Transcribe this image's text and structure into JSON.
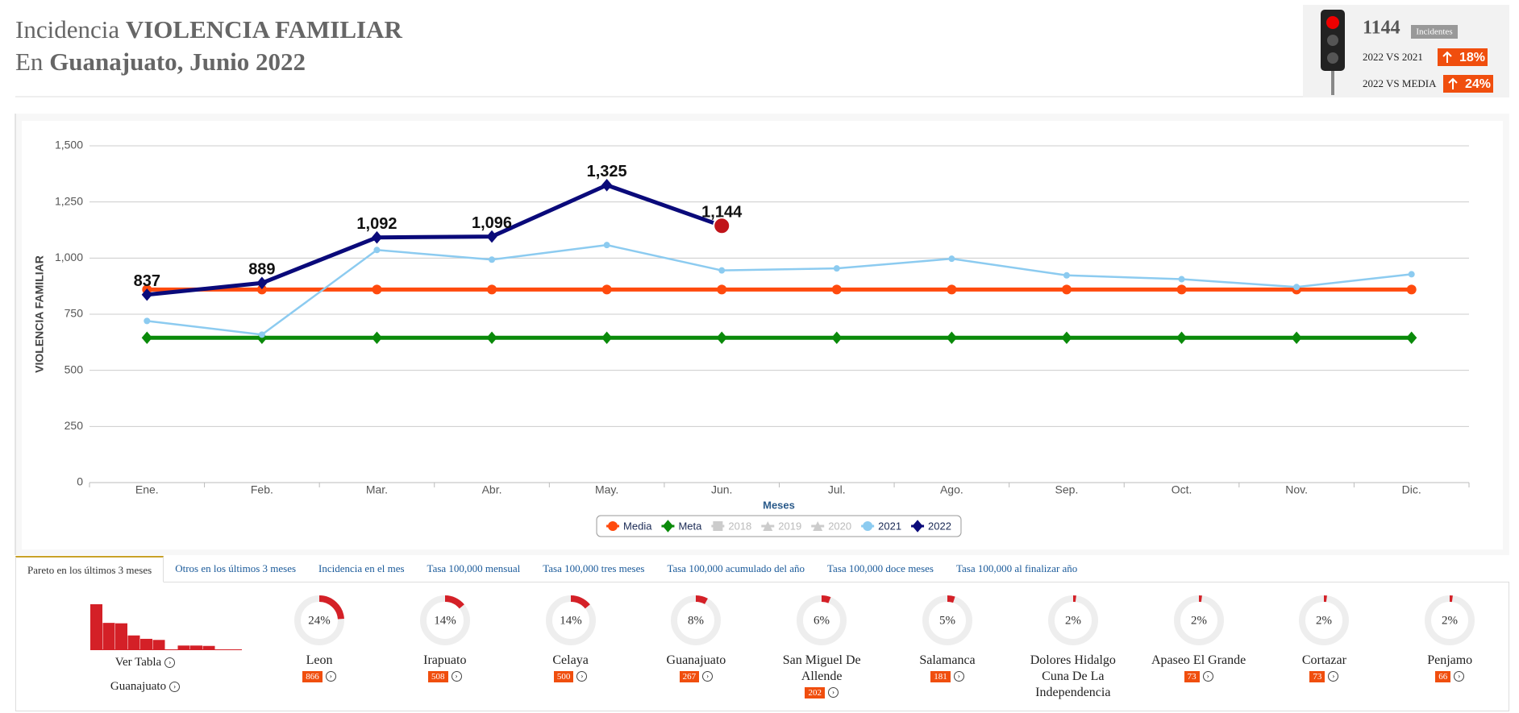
{
  "header": {
    "title_prefix": "Incidencia",
    "title_main": "VIOLENCIA FAMILIAR",
    "subtitle_prefix": "En",
    "subtitle_main": "Guanajuato, Junio 2022"
  },
  "indicator": {
    "total": "1144",
    "total_label": "Incidentes",
    "compare1_label": "2022 VS 2021",
    "compare1_value": "18%",
    "compare2_label": "2022 VS MEDIA",
    "compare2_value": "24%"
  },
  "chart_data": {
    "type": "line",
    "ylabel": "VIOLENCIA FAMILIAR",
    "xlabel": "Meses",
    "categories": [
      "Ene.",
      "Feb.",
      "Mar.",
      "Abr.",
      "May.",
      "Jun.",
      "Jul.",
      "Ago.",
      "Sep.",
      "Oct.",
      "Nov.",
      "Dic."
    ],
    "ylim": [
      0,
      1500
    ],
    "yticks": [
      0,
      250,
      500,
      750,
      {
        "value": 1000,
        "label": "1,000"
      },
      {
        "value": 1250,
        "label": "1,250"
      },
      {
        "value": 1500,
        "label": "1,500"
      }
    ],
    "grid": true,
    "series": [
      {
        "name": "Media",
        "color": "#ff4a0d",
        "marker": "circle",
        "values": [
          860,
          860,
          860,
          860,
          860,
          860,
          860,
          860,
          860,
          860,
          860,
          860
        ]
      },
      {
        "name": "Meta",
        "color": "#0a8a0a",
        "marker": "diamond",
        "values": [
          645,
          645,
          645,
          645,
          645,
          645,
          645,
          645,
          645,
          645,
          645,
          645
        ]
      },
      {
        "name": "2018",
        "color": "#cccccc",
        "marker": "square",
        "hidden": true,
        "values": [
          null,
          null,
          null,
          null,
          null,
          null,
          null,
          null,
          null,
          null,
          null,
          null
        ]
      },
      {
        "name": "2019",
        "color": "#cccccc",
        "marker": "triangle",
        "hidden": true,
        "values": [
          null,
          null,
          null,
          null,
          null,
          null,
          null,
          null,
          null,
          null,
          null,
          null
        ]
      },
      {
        "name": "2020",
        "color": "#cccccc",
        "marker": "triangle",
        "hidden": true,
        "values": [
          null,
          null,
          null,
          null,
          null,
          null,
          null,
          null,
          null,
          null,
          null,
          null
        ]
      },
      {
        "name": "2021",
        "color": "#8ccbf0",
        "marker": "circle",
        "values": [
          720,
          659,
          1036,
          993,
          1058,
          945,
          954,
          997,
          923,
          906,
          871,
          928
        ]
      },
      {
        "name": "2022",
        "color": "#0a0a7a",
        "marker": "diamond",
        "values": [
          837,
          889,
          1092,
          1096,
          1325,
          1144,
          null,
          null,
          null,
          null,
          null,
          null
        ],
        "value_labels": [
          "837",
          "889",
          "1,092",
          "1,096",
          "1,325",
          "1,144",
          null,
          null,
          null,
          null,
          null,
          null
        ]
      }
    ]
  },
  "tabs": [
    "Pareto en los últimos 3 meses",
    "Otros en los últimos 3 meses",
    "Incidencia en el mes",
    "Tasa 100,000 mensual",
    "Tasa 100,000 tres meses",
    "Tasa 100,000 acumulado del año",
    "Tasa 100,000 doce meses",
    "Tasa 100,000 al finalizar año"
  ],
  "pareto": {
    "links": [
      "Ver Tabla",
      "Guanajuato"
    ],
    "items": [
      {
        "name": "Leon",
        "pct": {
          "value": 24,
          "label": "24%"
        },
        "count": "866"
      },
      {
        "name": "Irapuato",
        "pct": {
          "value": 14,
          "label": "14%"
        },
        "count": "508"
      },
      {
        "name": "Celaya",
        "pct": {
          "value": 14,
          "label": "14%"
        },
        "count": "500"
      },
      {
        "name": "Guanajuato",
        "pct": {
          "value": 8,
          "label": "8%"
        },
        "count": "267"
      },
      {
        "name": "San Miguel De Allende",
        "pct": {
          "value": 6,
          "label": "6%"
        },
        "count": "202"
      },
      {
        "name": "Salamanca",
        "pct": {
          "value": 5,
          "label": "5%"
        },
        "count": "181"
      },
      {
        "name": "Dolores Hidalgo Cuna De La Independencia",
        "pct": {
          "value": 2,
          "label": "2%"
        }
      },
      {
        "name": "Apaseo El Grande",
        "pct": {
          "value": 2,
          "label": "2%"
        },
        "count": "73"
      },
      {
        "name": "Cortazar",
        "pct": {
          "value": 2,
          "label": "2%"
        },
        "count": "73"
      },
      {
        "name": "Penjamo",
        "pct": {
          "value": 2,
          "label": "2%"
        },
        "count": "66"
      }
    ]
  }
}
